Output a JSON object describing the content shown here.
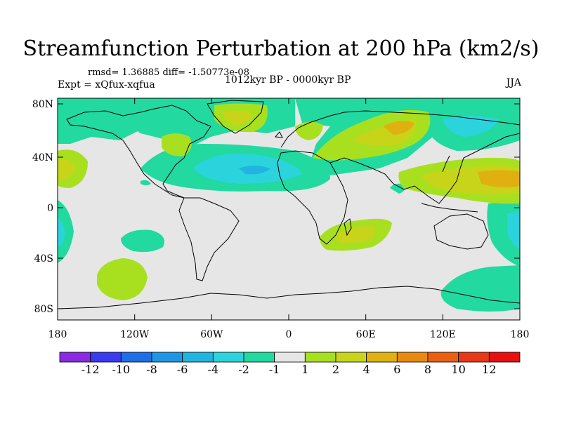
{
  "header": {
    "title": "Streamfunction Perturbation at 200 hPa (km2/s)",
    "stats": "rmsd= 1.36885  diff= -1.50773e-08",
    "experiment": "Expt = xQfux-xqfua",
    "period": "1012kyr BP - 0000kyr BP",
    "season": "JJA"
  },
  "axes": {
    "lat_ticks": [
      "80N",
      "40N",
      "0",
      "40S",
      "80S"
    ],
    "lon_ticks": [
      "180",
      "120W",
      "60W",
      "0",
      "60E",
      "120E",
      "180"
    ]
  },
  "colorbar": {
    "labels": [
      "-12",
      "-10",
      "-8",
      "-6",
      "-4",
      "-2",
      "-1",
      "1",
      "2",
      "4",
      "6",
      "8",
      "10",
      "12"
    ],
    "colors": [
      "#8a2be2",
      "#3a3af0",
      "#1e6ee8",
      "#1e96e6",
      "#22b4e0",
      "#2bd4dc",
      "#22d9a0",
      "#e6e6e6",
      "#a8e020",
      "#c8d41a",
      "#e0b010",
      "#e88a10",
      "#e86010",
      "#e83818",
      "#e81010"
    ]
  },
  "colors": {
    "background": "#e6e6e6",
    "coast": "#000000"
  }
}
